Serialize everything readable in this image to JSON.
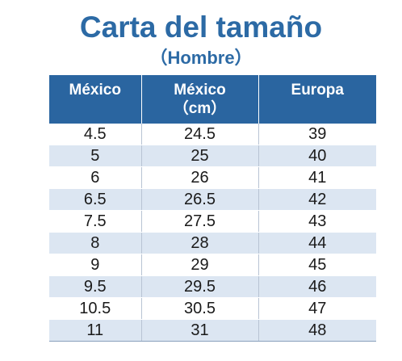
{
  "title": "Carta del tamaño",
  "subtitle": "（Hombre）",
  "table": {
    "headers": [
      {
        "line1": "México",
        "line2": ""
      },
      {
        "line1": "México",
        "line2": "（cm）"
      },
      {
        "line1": "Europa",
        "line2": ""
      }
    ],
    "rows": [
      [
        "4.5",
        "24.5",
        "39"
      ],
      [
        "5",
        "25",
        "40"
      ],
      [
        "6",
        "26",
        "41"
      ],
      [
        "6.5",
        "26.5",
        "42"
      ],
      [
        "7.5",
        "27.5",
        "43"
      ],
      [
        "8",
        "28",
        "44"
      ],
      [
        "9",
        "29",
        "45"
      ],
      [
        "9.5",
        "29.5",
        "46"
      ],
      [
        "10.5",
        "30.5",
        "47"
      ],
      [
        "11",
        "31",
        "48"
      ]
    ]
  },
  "colors": {
    "title": "#2c6aa5",
    "header_background": "#2a65a0",
    "header_text": "#ffffff",
    "stripe": "#dce6f2"
  }
}
